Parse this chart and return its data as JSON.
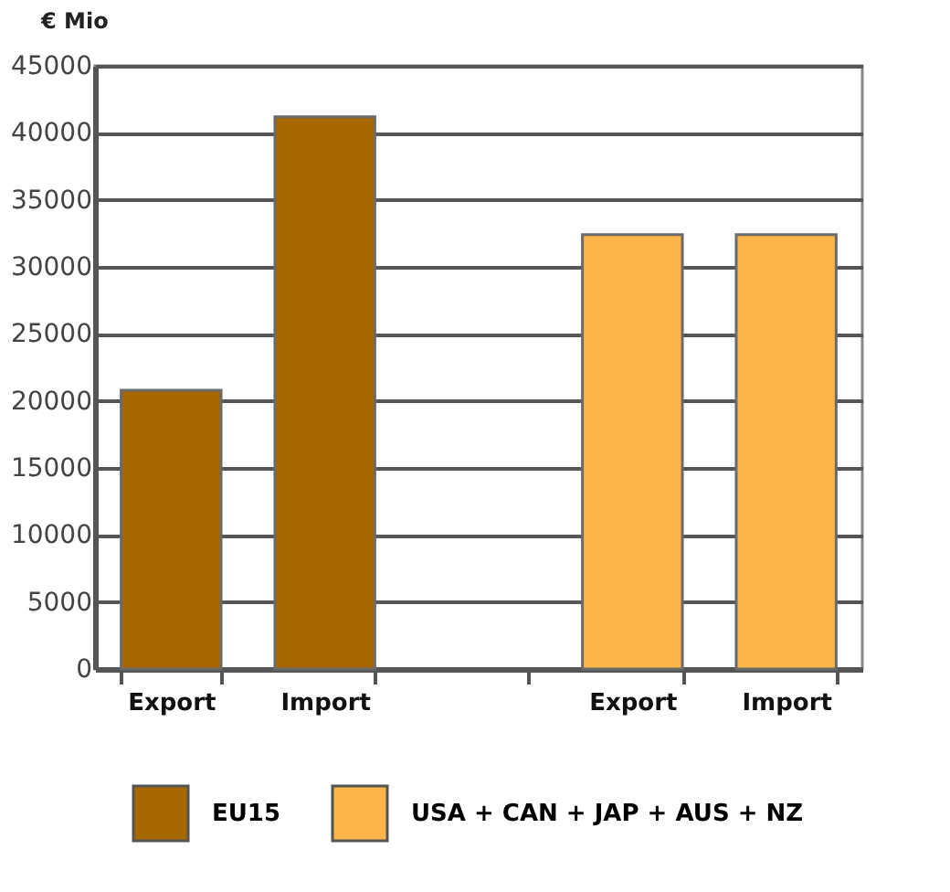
{
  "chart_data": {
    "type": "bar",
    "ylabel": "€ Mio",
    "categories": [
      "Export",
      "Import",
      null,
      "Export",
      "Import"
    ],
    "series": [
      {
        "name": "EU15",
        "color": "#a86800",
        "values": [
          20800,
          41200,
          null,
          null,
          null
        ]
      },
      {
        "name": "USA +  CAN + JAP + AUS + NZ",
        "color": "#fbb54b",
        "values": [
          null,
          null,
          null,
          32400,
          32400
        ]
      }
    ],
    "ylim": [
      0,
      45000
    ],
    "yticks": [
      0,
      5000,
      10000,
      15000,
      20000,
      25000,
      30000,
      35000,
      40000,
      45000
    ],
    "grid": "y",
    "legend": "bottom"
  }
}
